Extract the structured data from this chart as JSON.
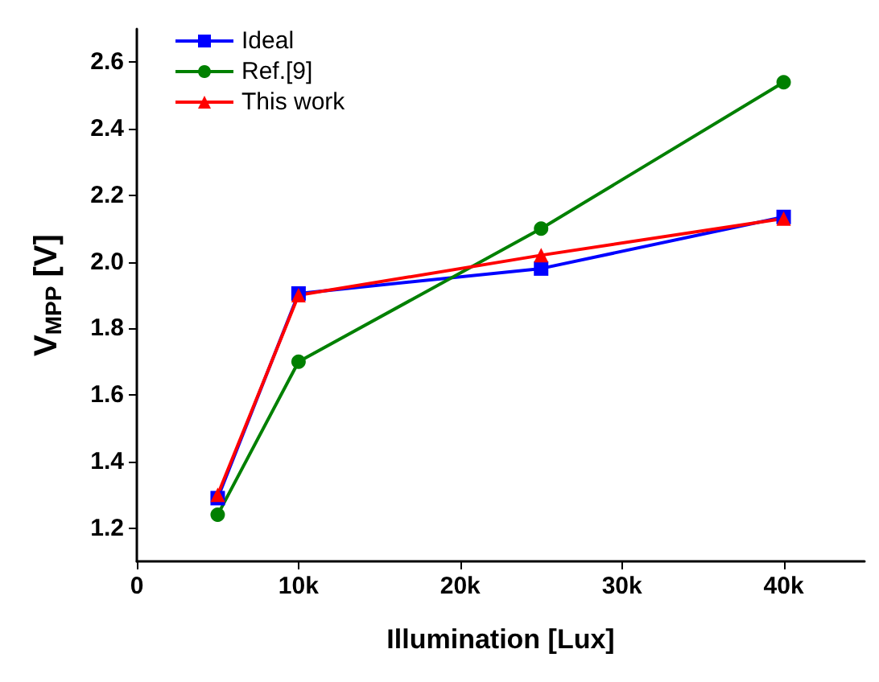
{
  "chart_data": {
    "type": "line",
    "xlabel": "Illumination [Lux]",
    "ylabel": "V$_{MPP}$ [V]",
    "x": [
      5000,
      10000,
      25000,
      40000
    ],
    "series": [
      {
        "name": "Ideal",
        "color": "#0000ff",
        "marker": "square",
        "values": [
          1.29,
          1.905,
          1.98,
          2.135
        ]
      },
      {
        "name": "Ref.[9]",
        "color": "#008000",
        "marker": "circle",
        "values": [
          1.24,
          1.7,
          2.1,
          2.54
        ]
      },
      {
        "name": "This work",
        "color": "#ff0000",
        "marker": "triangle",
        "values": [
          1.3,
          1.9,
          2.02,
          2.13
        ]
      }
    ],
    "xlim": [
      0,
      45000
    ],
    "xticks": [
      0,
      {
        "value": 10000,
        "label": "10k"
      },
      {
        "value": 20000,
        "label": "20k"
      },
      {
        "value": 30000,
        "label": "30k"
      },
      {
        "value": 40000,
        "label": "40k"
      }
    ],
    "ylim": [
      1.1,
      2.7
    ],
    "yticks": [
      1.2,
      1.4,
      1.6,
      1.8,
      {
        "value": 2,
        "label": "2.0"
      },
      2.2,
      2.4,
      2.6
    ],
    "grid": false,
    "legend": "top left",
    "line_style": "solid"
  }
}
